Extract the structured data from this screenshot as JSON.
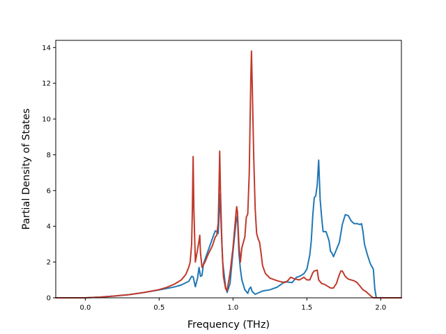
{
  "chart_data": {
    "type": "line",
    "xlabel": "Frequency (THz)",
    "ylabel": "Partial Density of States",
    "xlim": [
      -0.2,
      2.14
    ],
    "ylim": [
      0,
      14.4
    ],
    "x_ticks": [
      0.0,
      0.5,
      1.0,
      1.5,
      2.0
    ],
    "x_tick_labels": [
      "0.0",
      "0.5",
      "1.0",
      "1.5",
      "2.0"
    ],
    "y_ticks": [
      0,
      2,
      4,
      6,
      8,
      10,
      12,
      14
    ],
    "y_tick_labels": [
      "0",
      "2",
      "4",
      "6",
      "8",
      "10",
      "12",
      "14"
    ],
    "grid": false,
    "legend": "none",
    "series": [
      {
        "color": "#1f77b4",
        "points": [
          [
            -0.2,
            0
          ],
          [
            0,
            0
          ],
          [
            0.1,
            0.04
          ],
          [
            0.2,
            0.1
          ],
          [
            0.3,
            0.18
          ],
          [
            0.4,
            0.3
          ],
          [
            0.5,
            0.44
          ],
          [
            0.6,
            0.6
          ],
          [
            0.65,
            0.72
          ],
          [
            0.7,
            0.92
          ],
          [
            0.72,
            1.2
          ],
          [
            0.73,
            1.18
          ],
          [
            0.745,
            0.62
          ],
          [
            0.76,
            1.1
          ],
          [
            0.77,
            1.7
          ],
          [
            0.78,
            1.2
          ],
          [
            0.79,
            1.25
          ],
          [
            0.8,
            1.9
          ],
          [
            0.83,
            2.6
          ],
          [
            0.86,
            3.3
          ],
          [
            0.88,
            3.75
          ],
          [
            0.89,
            3.7
          ],
          [
            0.9,
            3.6
          ],
          [
            0.905,
            4.5
          ],
          [
            0.91,
            5.8
          ],
          [
            0.915,
            5.0
          ],
          [
            0.93,
            2.0
          ],
          [
            0.95,
            0.6
          ],
          [
            0.96,
            0.3
          ],
          [
            0.98,
            0.8
          ],
          [
            1.0,
            2.6
          ],
          [
            1.02,
            4.2
          ],
          [
            1.03,
            4.6
          ],
          [
            1.04,
            2.5
          ],
          [
            1.05,
            1.6
          ],
          [
            1.06,
            1.0
          ],
          [
            1.08,
            0.45
          ],
          [
            1.1,
            0.25
          ],
          [
            1.11,
            0.5
          ],
          [
            1.12,
            0.6
          ],
          [
            1.13,
            0.35
          ],
          [
            1.15,
            0.2
          ],
          [
            1.2,
            0.38
          ],
          [
            1.25,
            0.45
          ],
          [
            1.3,
            0.6
          ],
          [
            1.35,
            0.9
          ],
          [
            1.4,
            0.85
          ],
          [
            1.43,
            1.15
          ],
          [
            1.45,
            1.2
          ],
          [
            1.48,
            1.35
          ],
          [
            1.5,
            1.6
          ],
          [
            1.52,
            2.4
          ],
          [
            1.53,
            3.2
          ],
          [
            1.54,
            4.6
          ],
          [
            1.55,
            5.6
          ],
          [
            1.56,
            5.7
          ],
          [
            1.57,
            6.3
          ],
          [
            1.58,
            7.7
          ],
          [
            1.59,
            5.5
          ],
          [
            1.6,
            4.5
          ],
          [
            1.61,
            3.7
          ],
          [
            1.63,
            3.7
          ],
          [
            1.65,
            3.2
          ],
          [
            1.66,
            2.6
          ],
          [
            1.67,
            2.5
          ],
          [
            1.68,
            2.3
          ],
          [
            1.7,
            2.7
          ],
          [
            1.72,
            3.1
          ],
          [
            1.74,
            4.1
          ],
          [
            1.76,
            4.65
          ],
          [
            1.78,
            4.6
          ],
          [
            1.8,
            4.3
          ],
          [
            1.82,
            4.15
          ],
          [
            1.84,
            4.15
          ],
          [
            1.86,
            4.1
          ],
          [
            1.87,
            4.15
          ],
          [
            1.88,
            3.7
          ],
          [
            1.89,
            3.0
          ],
          [
            1.91,
            2.4
          ],
          [
            1.93,
            1.9
          ],
          [
            1.95,
            1.6
          ],
          [
            1.96,
            0.5
          ],
          [
            1.97,
            0
          ],
          [
            2.14,
            0
          ]
        ]
      },
      {
        "color": "#c0392b",
        "points": [
          [
            -0.2,
            0
          ],
          [
            0,
            0
          ],
          [
            0.1,
            0.04
          ],
          [
            0.2,
            0.1
          ],
          [
            0.3,
            0.18
          ],
          [
            0.4,
            0.3
          ],
          [
            0.5,
            0.46
          ],
          [
            0.55,
            0.58
          ],
          [
            0.6,
            0.75
          ],
          [
            0.65,
            1.0
          ],
          [
            0.68,
            1.3
          ],
          [
            0.7,
            1.7
          ],
          [
            0.71,
            2.0
          ],
          [
            0.72,
            3.0
          ],
          [
            0.725,
            5.0
          ],
          [
            0.73,
            7.9
          ],
          [
            0.735,
            5.0
          ],
          [
            0.745,
            2.0
          ],
          [
            0.76,
            2.7
          ],
          [
            0.77,
            3.2
          ],
          [
            0.775,
            3.5
          ],
          [
            0.78,
            2.5
          ],
          [
            0.79,
            1.7
          ],
          [
            0.81,
            2.0
          ],
          [
            0.83,
            2.4
          ],
          [
            0.86,
            2.9
          ],
          [
            0.88,
            3.4
          ],
          [
            0.89,
            3.5
          ],
          [
            0.9,
            4.2
          ],
          [
            0.905,
            6.0
          ],
          [
            0.91,
            8.2
          ],
          [
            0.915,
            6.0
          ],
          [
            0.925,
            3.0
          ],
          [
            0.935,
            1.2
          ],
          [
            0.95,
            0.5
          ],
          [
            0.96,
            0.4
          ],
          [
            0.98,
            1.4
          ],
          [
            1.0,
            2.8
          ],
          [
            1.02,
            4.7
          ],
          [
            1.025,
            5.1
          ],
          [
            1.03,
            4.8
          ],
          [
            1.04,
            3.0
          ],
          [
            1.05,
            2.0
          ],
          [
            1.06,
            2.8
          ],
          [
            1.08,
            3.4
          ],
          [
            1.09,
            4.5
          ],
          [
            1.1,
            4.7
          ],
          [
            1.11,
            7.0
          ],
          [
            1.12,
            12.0
          ],
          [
            1.125,
            13.8
          ],
          [
            1.13,
            12.0
          ],
          [
            1.14,
            8.0
          ],
          [
            1.15,
            5.0
          ],
          [
            1.16,
            3.6
          ],
          [
            1.17,
            3.3
          ],
          [
            1.18,
            3.1
          ],
          [
            1.19,
            2.5
          ],
          [
            1.2,
            1.8
          ],
          [
            1.22,
            1.35
          ],
          [
            1.25,
            1.1
          ],
          [
            1.3,
            0.95
          ],
          [
            1.35,
            0.85
          ],
          [
            1.37,
            0.95
          ],
          [
            1.39,
            1.15
          ],
          [
            1.42,
            1.05
          ],
          [
            1.45,
            1.0
          ],
          [
            1.48,
            1.15
          ],
          [
            1.5,
            1.0
          ],
          [
            1.52,
            1.0
          ],
          [
            1.54,
            1.4
          ],
          [
            1.55,
            1.5
          ],
          [
            1.57,
            1.55
          ],
          [
            1.58,
            1.0
          ],
          [
            1.6,
            0.8
          ],
          [
            1.62,
            0.75
          ],
          [
            1.64,
            0.65
          ],
          [
            1.66,
            0.55
          ],
          [
            1.68,
            0.55
          ],
          [
            1.7,
            0.8
          ],
          [
            1.72,
            1.3
          ],
          [
            1.73,
            1.5
          ],
          [
            1.74,
            1.5
          ],
          [
            1.76,
            1.2
          ],
          [
            1.78,
            1.05
          ],
          [
            1.8,
            1.0
          ],
          [
            1.82,
            0.95
          ],
          [
            1.84,
            0.85
          ],
          [
            1.86,
            0.65
          ],
          [
            1.88,
            0.45
          ],
          [
            1.9,
            0.35
          ],
          [
            1.92,
            0.2
          ],
          [
            1.94,
            0.05
          ],
          [
            1.95,
            0
          ],
          [
            2.14,
            0
          ]
        ]
      }
    ]
  }
}
